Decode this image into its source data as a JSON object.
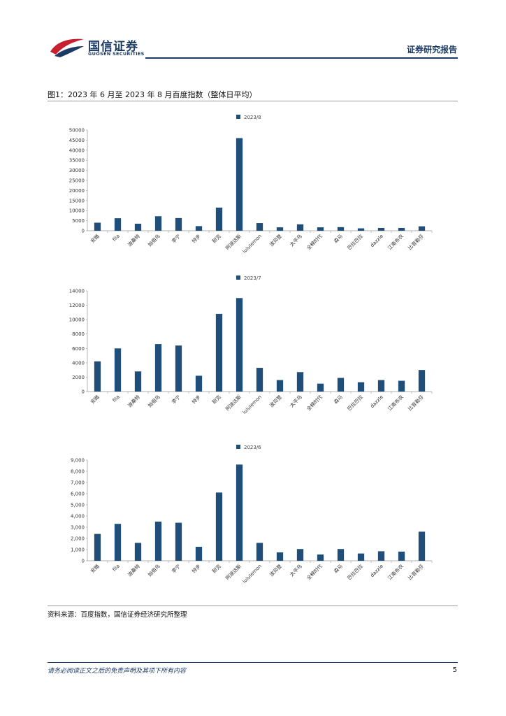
{
  "header": {
    "brand_cn": "国信证券",
    "brand_en": "GUOSEN SECURITIES",
    "report_type": "证券研究报告",
    "logo_color": "#c8202f",
    "brand_color": "#1c3a63"
  },
  "figure": {
    "title": "图1：2023 年 6 月至 2023 年 8 月百度指数（整体日平均）",
    "source": "资料来源：百度指数，国信证券经济研究所整理"
  },
  "footer": {
    "disclaimer": "请务必阅读正文之后的免责声明及其项下所有内容",
    "page_number": "5"
  },
  "chart_data": [
    {
      "type": "bar",
      "legend": "2023/8",
      "color": "#1f4e79",
      "categories": [
        "安踏",
        "fila",
        "迪桑特",
        "始祖鸟",
        "李宁",
        "特步",
        "耐克",
        "阿迪达斯",
        "lululemon",
        "波司登",
        "太平鸟",
        "全棉时代",
        "森马",
        "巴拉巴拉",
        "dazzle",
        "江南布衣",
        "比音勒芬"
      ],
      "values": [
        4000,
        6200,
        3500,
        7200,
        6300,
        2300,
        11500,
        46000,
        3800,
        1700,
        3200,
        1700,
        1800,
        1200,
        1400,
        1400,
        2200
      ],
      "ylim": [
        0,
        50000
      ],
      "yticks": [
        "0",
        "5000",
        "10000",
        "15000",
        "20000",
        "25000",
        "30000",
        "35000",
        "40000",
        "45000",
        "50000"
      ]
    },
    {
      "type": "bar",
      "legend": "2023/7",
      "color": "#1f4e79",
      "categories": [
        "安踏",
        "fila",
        "迪桑特",
        "始祖鸟",
        "李宁",
        "特步",
        "耐克",
        "阿迪达斯",
        "lululemon",
        "波司登",
        "太平鸟",
        "全棉时代",
        "森马",
        "巴拉巴拉",
        "dazzle",
        "江南布衣",
        "比音勒芬"
      ],
      "values": [
        4200,
        6000,
        2800,
        6600,
        6400,
        2200,
        10800,
        13000,
        3300,
        1600,
        2700,
        1100,
        1900,
        1300,
        1600,
        1500,
        3000
      ],
      "ylim": [
        0,
        14000
      ],
      "yticks": [
        "0",
        "2000",
        "4000",
        "6000",
        "8000",
        "10000",
        "12000",
        "14000"
      ]
    },
    {
      "type": "bar",
      "legend": "2023/6",
      "color": "#1f4e79",
      "categories": [
        "安踏",
        "fila",
        "迪桑特",
        "始祖鸟",
        "李宁",
        "特步",
        "耐克",
        "阿迪达斯",
        "lululemon",
        "波司登",
        "太平鸟",
        "全棉时代",
        "森马",
        "巴拉巴拉",
        "dazzle",
        "江南布衣",
        "比音勒芬"
      ],
      "values": [
        2400,
        3300,
        1600,
        3500,
        3400,
        1250,
        6100,
        8600,
        1600,
        750,
        1050,
        560,
        1050,
        650,
        850,
        820,
        2600
      ],
      "ylim": [
        0,
        9000
      ],
      "yticks": [
        "0",
        "1,000",
        "2,000",
        "3,000",
        "4,000",
        "5,000",
        "6,000",
        "7,000",
        "8,000",
        "9,000"
      ]
    }
  ]
}
